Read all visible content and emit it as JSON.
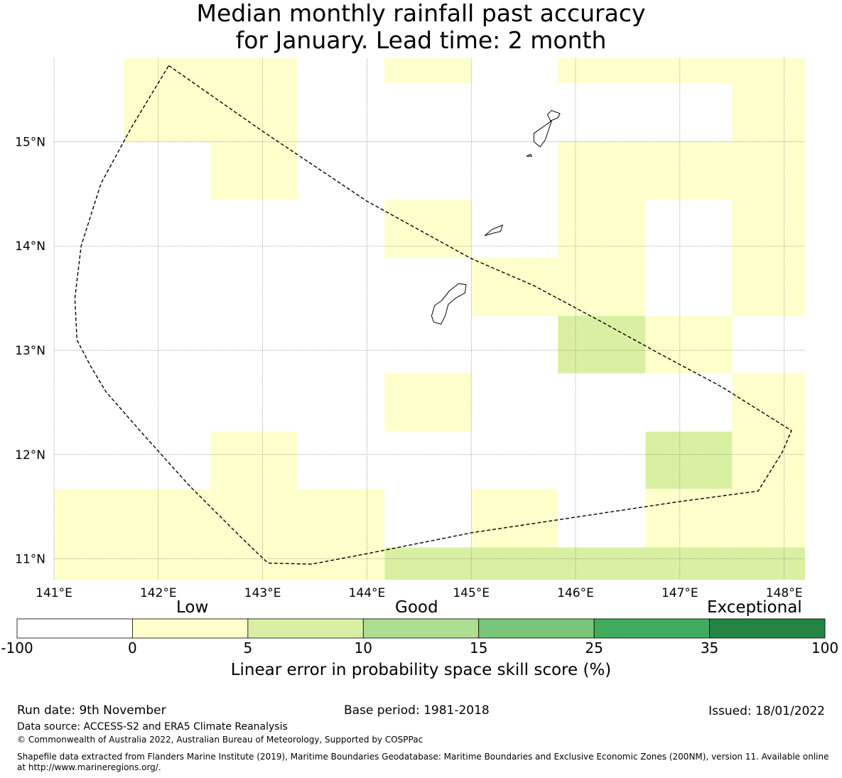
{
  "title": {
    "line1": "Median monthly rainfall past accuracy",
    "line2": "for January. Lead time: 2 month"
  },
  "map": {
    "lon_range": [
      141.0,
      148.2
    ],
    "lat_range": [
      10.8,
      15.8
    ],
    "lon_ticks": [
      {
        "value": 141,
        "label": "141°E"
      },
      {
        "value": 142,
        "label": "142°E"
      },
      {
        "value": 143,
        "label": "143°E"
      },
      {
        "value": 144,
        "label": "144°E"
      },
      {
        "value": 145,
        "label": "145°E"
      },
      {
        "value": 146,
        "label": "146°E"
      },
      {
        "value": 147,
        "label": "147°E"
      },
      {
        "value": 148,
        "label": "148°E"
      }
    ],
    "lat_ticks": [
      {
        "value": 11,
        "label": "11°N"
      },
      {
        "value": 12,
        "label": "12°N"
      },
      {
        "value": 13,
        "label": "13°N"
      },
      {
        "value": 14,
        "label": "14°N"
      },
      {
        "value": 15,
        "label": "15°N"
      }
    ],
    "skill_cells": [
      {
        "lon0": 141.67,
        "lon1": 142.5,
        "lat0": 15.0,
        "lat1": 15.8,
        "cls": "low"
      },
      {
        "lon0": 142.5,
        "lon1": 143.33,
        "lat0": 15.0,
        "lat1": 15.8,
        "cls": "low"
      },
      {
        "lon0": 142.5,
        "lon1": 143.33,
        "lat0": 14.44,
        "lat1": 15.0,
        "cls": "low"
      },
      {
        "lon0": 144.17,
        "lon1": 145.0,
        "lat0": 15.56,
        "lat1": 15.8,
        "cls": "low"
      },
      {
        "lon0": 145.83,
        "lon1": 147.5,
        "lat0": 15.56,
        "lat1": 15.8,
        "cls": "low"
      },
      {
        "lon0": 147.5,
        "lon1": 148.2,
        "lat0": 13.33,
        "lat1": 15.8,
        "cls": "low"
      },
      {
        "lon0": 145.83,
        "lon1": 147.5,
        "lat0": 14.44,
        "lat1": 15.0,
        "cls": "low"
      },
      {
        "lon0": 145.83,
        "lon1": 146.67,
        "lat0": 13.33,
        "lat1": 14.44,
        "cls": "low"
      },
      {
        "lon0": 144.17,
        "lon1": 145.0,
        "lat0": 13.89,
        "lat1": 14.44,
        "cls": "low"
      },
      {
        "lon0": 145.0,
        "lon1": 145.83,
        "lat0": 13.33,
        "lat1": 13.89,
        "cls": "low"
      },
      {
        "lon0": 145.83,
        "lon1": 146.67,
        "lat0": 12.78,
        "lat1": 13.33,
        "cls": "good"
      },
      {
        "lon0": 146.67,
        "lon1": 147.5,
        "lat0": 12.78,
        "lat1": 13.33,
        "cls": "low"
      },
      {
        "lon0": 147.5,
        "lon1": 148.2,
        "lat0": 11.11,
        "lat1": 12.78,
        "cls": "low"
      },
      {
        "lon0": 144.17,
        "lon1": 145.0,
        "lat0": 12.22,
        "lat1": 12.78,
        "cls": "low"
      },
      {
        "lon0": 142.5,
        "lon1": 143.33,
        "lat0": 11.67,
        "lat1": 12.22,
        "cls": "low"
      },
      {
        "lon0": 141.0,
        "lon1": 144.17,
        "lat0": 11.11,
        "lat1": 11.67,
        "cls": "low"
      },
      {
        "lon0": 146.67,
        "lon1": 147.5,
        "lat0": 11.67,
        "lat1": 12.22,
        "cls": "good"
      },
      {
        "lon0": 146.67,
        "lon1": 147.5,
        "lat0": 11.11,
        "lat1": 11.67,
        "cls": "low"
      },
      {
        "lon0": 145.0,
        "lon1": 145.83,
        "lat0": 11.11,
        "lat1": 11.67,
        "cls": "low"
      },
      {
        "lon0": 141.0,
        "lon1": 144.17,
        "lat0": 10.8,
        "lat1": 11.11,
        "cls": "low"
      },
      {
        "lon0": 144.17,
        "lon1": 148.2,
        "lat0": 10.8,
        "lat1": 11.11,
        "cls": "good"
      }
    ],
    "eez_boundary": [
      [
        142.1,
        15.73
      ],
      [
        143.0,
        15.1
      ],
      [
        144.0,
        14.43
      ],
      [
        145.0,
        13.88
      ],
      [
        145.6,
        13.62
      ],
      [
        146.2,
        13.3
      ],
      [
        146.8,
        12.97
      ],
      [
        147.4,
        12.65
      ],
      [
        148.07,
        12.23
      ],
      [
        147.98,
        12.02
      ],
      [
        147.75,
        11.65
      ],
      [
        147.0,
        11.55
      ],
      [
        146.0,
        11.4
      ],
      [
        145.0,
        11.25
      ],
      [
        144.0,
        11.05
      ],
      [
        143.47,
        10.95
      ],
      [
        143.05,
        10.96
      ],
      [
        142.8,
        11.2
      ],
      [
        142.3,
        11.7
      ],
      [
        141.85,
        12.2
      ],
      [
        141.5,
        12.6
      ],
      [
        141.35,
        12.85
      ],
      [
        141.22,
        13.1
      ],
      [
        141.2,
        13.5
      ],
      [
        141.26,
        14.0
      ],
      [
        141.45,
        14.6
      ],
      [
        141.75,
        15.15
      ],
      [
        142.1,
        15.73
      ]
    ],
    "islands": [
      [
        [
          144.65,
          13.43
        ],
        [
          144.72,
          13.48
        ],
        [
          144.79,
          13.57
        ],
        [
          144.88,
          13.64
        ],
        [
          144.95,
          13.63
        ],
        [
          144.94,
          13.55
        ],
        [
          144.85,
          13.5
        ],
        [
          144.78,
          13.44
        ],
        [
          144.75,
          13.33
        ],
        [
          144.71,
          13.25
        ],
        [
          144.64,
          13.27
        ],
        [
          144.62,
          13.33
        ],
        [
          144.65,
          13.43
        ]
      ],
      [
        [
          145.13,
          14.1
        ],
        [
          145.2,
          14.16
        ],
        [
          145.3,
          14.2
        ],
        [
          145.28,
          14.14
        ],
        [
          145.2,
          14.12
        ],
        [
          145.13,
          14.1
        ]
      ],
      [
        [
          145.6,
          15.08
        ],
        [
          145.7,
          15.15
        ],
        [
          145.77,
          15.2
        ],
        [
          145.71,
          15.02
        ],
        [
          145.66,
          14.95
        ],
        [
          145.6,
          15.0
        ],
        [
          145.6,
          15.08
        ]
      ],
      [
        [
          145.73,
          15.26
        ],
        [
          145.76,
          15.2
        ],
        [
          145.83,
          15.23
        ],
        [
          145.85,
          15.27
        ],
        [
          145.77,
          15.3
        ],
        [
          145.73,
          15.26
        ]
      ],
      [
        [
          145.53,
          14.86
        ],
        [
          145.57,
          14.88
        ],
        [
          145.58,
          14.86
        ],
        [
          145.53,
          14.86
        ]
      ]
    ]
  },
  "colorbar": {
    "category_labels": {
      "low": "Low",
      "good": "Good",
      "exceptional": "Exceptional"
    },
    "boundaries": [
      {
        "value": "-100"
      },
      {
        "value": "0"
      },
      {
        "value": "5"
      },
      {
        "value": "10"
      },
      {
        "value": "15"
      },
      {
        "value": "25"
      },
      {
        "value": "35"
      },
      {
        "value": "100"
      }
    ],
    "colors": [
      "#ffffff",
      "#ffffcc",
      "#d9f0a3",
      "#addd8e",
      "#78c679",
      "#41ab5d",
      "#238443"
    ],
    "title": "Linear error in probability space skill score (%)"
  },
  "cell_colors": {
    "low": "#ffffcc",
    "good": "#d9f0a3"
  },
  "footer": {
    "run_date": "Run date: 9th November",
    "base_period": "Base period: 1981-2018",
    "issued": "Issued: 18/01/2022",
    "data_source": "Data source: ACCESS-S2 and ERA5 Climate Reanalysis",
    "copyright": "© Commonwealth of Australia 2022, Australian Bureau of Meteorology, Supported by COSPPac",
    "shapefile_line1": "Shapefile data extracted from Flanders Marine Institute (2019), Maritime Boundaries Geodatabase: Maritime Boundaries and Exclusive Economic Zones (200NM), version 11. Available online",
    "shapefile_line2": "at http://www.marineregions.org/."
  }
}
